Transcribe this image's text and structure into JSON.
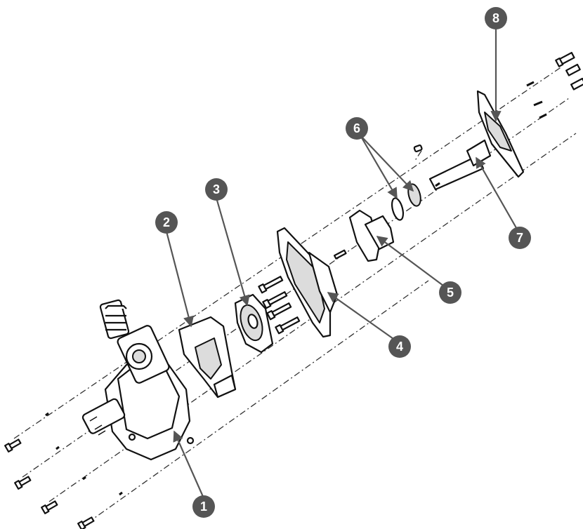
{
  "callouts": [
    {
      "label": "1"
    },
    {
      "label": "2"
    },
    {
      "label": "3"
    },
    {
      "label": "4"
    },
    {
      "label": "5"
    },
    {
      "label": "6"
    },
    {
      "label": "7"
    },
    {
      "label": "8"
    }
  ],
  "colors": {
    "callout_fill": "#555555",
    "callout_text": "#ffffff",
    "line_art": "#111111",
    "background": "#ffffff"
  }
}
